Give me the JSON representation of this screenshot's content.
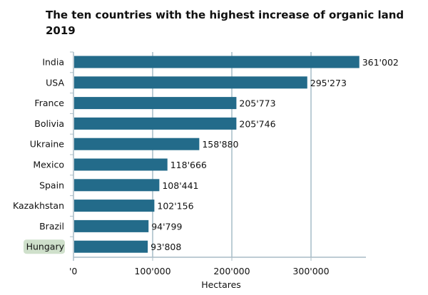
{
  "chart_data": {
    "type": "bar",
    "orientation": "horizontal",
    "title": "The ten countries with the highest increase of organic land",
    "subtitle": "2019",
    "categories": [
      "India",
      "USA",
      "France",
      "Bolivia",
      "Ukraine",
      "Mexico",
      "Spain",
      "Kazakhstan",
      "Brazil",
      "Hungary"
    ],
    "values": [
      361002,
      295273,
      205773,
      205746,
      158880,
      118666,
      108441,
      102156,
      94799,
      93808
    ],
    "value_labels": [
      "361'002",
      "295'273",
      "205'773",
      "205'746",
      "158'880",
      "118'666",
      "108'441",
      "102'156",
      "94'799",
      "93'808"
    ],
    "highlighted_category": "Hungary",
    "xlabel": "Hectares",
    "ylabel": "",
    "xlim": [
      0,
      370000
    ],
    "xticks": [
      0,
      100000,
      200000,
      300000
    ],
    "xtick_labels": [
      "'0",
      "100'000",
      "200'000",
      "300'000"
    ],
    "grid": "vertical",
    "colors": {
      "bar": "#236b8a",
      "grid": "#7a9bab",
      "highlight": "#cfe0cb",
      "axis": "#a9bcc6"
    }
  }
}
